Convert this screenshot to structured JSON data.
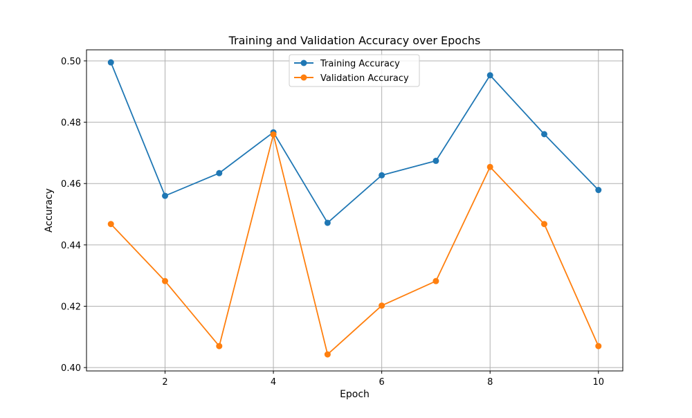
{
  "chart_data": {
    "type": "line",
    "title": "Training and Validation Accuracy over Epochs",
    "xlabel": "Epoch",
    "ylabel": "Accuracy",
    "xlim": [
      0.55,
      10.45
    ],
    "ylim": [
      0.3989,
      0.5036
    ],
    "xticks": [
      2,
      4,
      6,
      8,
      10
    ],
    "xtick_labels": [
      "2",
      "4",
      "6",
      "8",
      "10"
    ],
    "yticks": [
      0.4,
      0.42,
      0.44,
      0.46,
      0.48,
      0.5
    ],
    "ytick_labels": [
      "0.40",
      "0.42",
      "0.44",
      "0.46",
      "0.48",
      "0.50"
    ],
    "grid": true,
    "legend_position": "upper center",
    "x": [
      1,
      2,
      3,
      4,
      5,
      6,
      7,
      8,
      9,
      10
    ],
    "series": [
      {
        "name": "Training Accuracy",
        "color": "#1f77b4",
        "marker": "circle",
        "values": [
          0.4995,
          0.456,
          0.4634,
          0.4767,
          0.4472,
          0.4627,
          0.4674,
          0.4953,
          0.4761,
          0.4579
        ]
      },
      {
        "name": "Validation Accuracy",
        "color": "#ff7f0e",
        "marker": "circle",
        "values": [
          0.4468,
          0.4282,
          0.407,
          0.476,
          0.4043,
          0.4202,
          0.4282,
          0.4654,
          0.4468,
          0.407
        ]
      }
    ]
  }
}
